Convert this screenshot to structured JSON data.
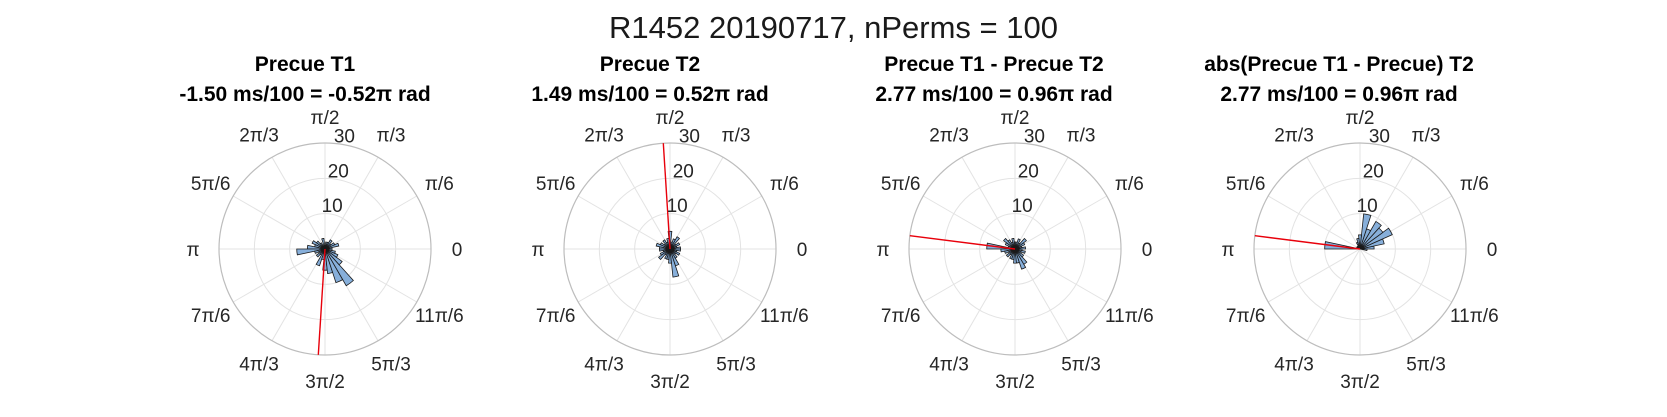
{
  "figure": {
    "suptitle": "R1452 20190717, nPerms = 100"
  },
  "chart_data": [
    {
      "type": "polar_histogram",
      "title": "Precue T1",
      "subtitle": "-1.50 ms/100 = -0.52π rad",
      "rlim": [
        0,
        30
      ],
      "r_ticks": [
        "10",
        "20",
        "30"
      ],
      "theta_tick_labels": [
        "0",
        "π/6",
        "π/3",
        "π/2",
        "2π/3",
        "5π/6",
        "π",
        "7π/6",
        "4π/3",
        "3π/2",
        "5π/3",
        "11π/6"
      ],
      "bin_counts": [
        2,
        4,
        3,
        2,
        3,
        2,
        2,
        1,
        3,
        1,
        2,
        3,
        4,
        3,
        5,
        8,
        3,
        2,
        3,
        2,
        5,
        3,
        6,
        7,
        10,
        12,
        6,
        4,
        3,
        2
      ],
      "mean_angle_rad": -1.634,
      "mean_r": 30,
      "bar_color": "#7aa6d6",
      "line_color": "#e8000b",
      "grid": true
    },
    {
      "type": "polar_histogram",
      "title": "Precue T2",
      "subtitle": "1.49 ms/100 = 0.52π rad",
      "rlim": [
        0,
        30
      ],
      "r_ticks": [
        "10",
        "20",
        "30"
      ],
      "theta_tick_labels": [
        "0",
        "π/6",
        "π/3",
        "π/2",
        "2π/3",
        "5π/6",
        "π",
        "7π/6",
        "4π/3",
        "3π/2",
        "5π/3",
        "11π/6"
      ],
      "bin_counts": [
        3,
        2,
        3,
        2,
        4,
        3,
        2,
        5,
        3,
        2,
        3,
        2,
        3,
        4,
        3,
        3,
        2,
        3,
        4,
        2,
        3,
        3,
        4,
        8,
        5,
        3,
        2,
        3,
        2,
        3
      ],
      "mean_angle_rad": 1.634,
      "mean_r": 30,
      "bar_color": "#7aa6d6",
      "line_color": "#e8000b",
      "grid": true
    },
    {
      "type": "polar_histogram",
      "title": "Precue T1 - Precue T2",
      "subtitle": "2.77 ms/100 = 0.96π rad",
      "rlim": [
        0,
        30
      ],
      "r_ticks": [
        "10",
        "20",
        "30"
      ],
      "theta_tick_labels": [
        "0",
        "π/6",
        "π/3",
        "π/2",
        "2π/3",
        "5π/6",
        "π",
        "7π/6",
        "4π/3",
        "3π/2",
        "5π/3",
        "11π/6"
      ],
      "bin_counts": [
        3,
        2,
        3,
        4,
        2,
        3,
        2,
        2,
        3,
        2,
        3,
        4,
        3,
        2,
        8,
        4,
        3,
        2,
        3,
        2,
        3,
        3,
        4,
        4,
        6,
        5,
        3,
        2,
        3,
        2
      ],
      "mean_angle_rad": 3.016,
      "mean_r": 30,
      "bar_color": "#7aa6d6",
      "line_color": "#e8000b",
      "grid": true
    },
    {
      "type": "polar_histogram",
      "title": "abs(Precue T1 - Precue) T2",
      "subtitle": "2.77 ms/100 = 0.96π rad",
      "rlim": [
        0,
        30
      ],
      "r_ticks": [
        "10",
        "20",
        "30"
      ],
      "theta_tick_labels": [
        "0",
        "π/6",
        "π/3",
        "π/2",
        "2π/3",
        "5π/6",
        "π",
        "7π/6",
        "4π/3",
        "3π/2",
        "5π/3",
        "11π/6"
      ],
      "bin_counts": [
        4,
        7,
        10,
        8,
        9,
        6,
        10,
        4,
        3,
        2,
        1,
        1,
        1,
        1,
        10,
        0,
        0,
        0,
        0,
        0,
        0,
        0,
        0,
        0,
        0,
        0,
        0,
        0,
        0,
        2
      ],
      "mean_angle_rad": 3.016,
      "mean_r": 30,
      "bar_color": "#7aa6d6",
      "line_color": "#e8000b",
      "grid": true
    }
  ]
}
